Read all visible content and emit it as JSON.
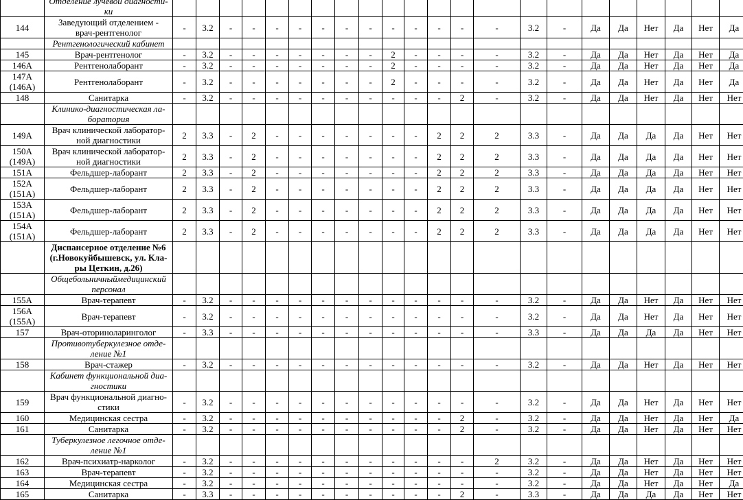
{
  "table": {
    "rows": [
      {
        "type": "section",
        "num": "",
        "name": "Отделение лучевой диагности-\nки"
      },
      {
        "type": "data",
        "num": "144",
        "name": "Заведующий отделением -\nврач-рентгенолог",
        "vals": [
          "-",
          "3.2",
          "-",
          "-",
          "-",
          "-",
          "-",
          "-",
          "-",
          "-",
          "-",
          "-",
          "-",
          "-",
          "3.2",
          "-"
        ],
        "flags": [
          "Да",
          "Да",
          "Нет",
          "Да",
          "Нет",
          "Да"
        ]
      },
      {
        "type": "section",
        "num": "",
        "name": "Рентгенологический кабинет"
      },
      {
        "type": "data",
        "num": "145",
        "name": "Врач-рентгенолог",
        "vals": [
          "-",
          "3.2",
          "-",
          "-",
          "-",
          "-",
          "-",
          "-",
          "-",
          "2",
          "-",
          "-",
          "-",
          "-",
          "3.2",
          "-"
        ],
        "flags": [
          "Да",
          "Да",
          "Нет",
          "Да",
          "Нет",
          "Да"
        ]
      },
      {
        "type": "data",
        "num": "146А",
        "name": "Рентгенолаборант",
        "vals": [
          "-",
          "3.2",
          "-",
          "-",
          "-",
          "-",
          "-",
          "-",
          "-",
          "2",
          "-",
          "-",
          "-",
          "-",
          "3.2",
          "-"
        ],
        "flags": [
          "Да",
          "Да",
          "Нет",
          "Да",
          "Нет",
          "Да"
        ]
      },
      {
        "type": "data",
        "num": "147А\n(146А)",
        "name": "Рентгенолаборант",
        "vals": [
          "-",
          "3.2",
          "-",
          "-",
          "-",
          "-",
          "-",
          "-",
          "-",
          "2",
          "-",
          "-",
          "-",
          "-",
          "3.2",
          "-"
        ],
        "flags": [
          "Да",
          "Да",
          "Нет",
          "Да",
          "Нет",
          "Да"
        ]
      },
      {
        "type": "data",
        "num": "148",
        "name": "Санитарка",
        "vals": [
          "-",
          "3.2",
          "-",
          "-",
          "-",
          "-",
          "-",
          "-",
          "-",
          "-",
          "-",
          "-",
          "2",
          "-",
          "3.2",
          "-"
        ],
        "flags": [
          "Да",
          "Да",
          "Нет",
          "Да",
          "Нет",
          "Нет"
        ]
      },
      {
        "type": "section",
        "num": "",
        "name": "Клинико-диагностическая ла-\nборатория"
      },
      {
        "type": "data",
        "num": "149А",
        "name": "Врач клинической лаборатор-\nной диагностики",
        "vals": [
          "2",
          "3.3",
          "-",
          "2",
          "-",
          "-",
          "-",
          "-",
          "-",
          "-",
          "-",
          "2",
          "2",
          "2",
          "3.3",
          "-"
        ],
        "flags": [
          "Да",
          "Да",
          "Да",
          "Да",
          "Нет",
          "Нет"
        ]
      },
      {
        "type": "data",
        "num": "150А\n(149А)",
        "name": "Врач клинической лаборатор-\nной диагностики",
        "vals": [
          "2",
          "3.3",
          "-",
          "2",
          "-",
          "-",
          "-",
          "-",
          "-",
          "-",
          "-",
          "2",
          "2",
          "2",
          "3.3",
          "-"
        ],
        "flags": [
          "Да",
          "Да",
          "Да",
          "Да",
          "Нет",
          "Нет"
        ]
      },
      {
        "type": "data",
        "num": "151А",
        "name": "Фельдшер-лаборант",
        "vals": [
          "2",
          "3.3",
          "-",
          "2",
          "-",
          "-",
          "-",
          "-",
          "-",
          "-",
          "-",
          "2",
          "2",
          "2",
          "3.3",
          "-"
        ],
        "flags": [
          "Да",
          "Да",
          "Да",
          "Да",
          "Нет",
          "Нет"
        ]
      },
      {
        "type": "data",
        "num": "152А\n(151А)",
        "name": "Фельдшер-лаборант",
        "vals": [
          "2",
          "3.3",
          "-",
          "2",
          "-",
          "-",
          "-",
          "-",
          "-",
          "-",
          "-",
          "2",
          "2",
          "2",
          "3.3",
          "-"
        ],
        "flags": [
          "Да",
          "Да",
          "Да",
          "Да",
          "Нет",
          "Нет"
        ]
      },
      {
        "type": "data",
        "num": "153А\n(151А)",
        "name": "Фельдшер-лаборант",
        "vals": [
          "2",
          "3.3",
          "-",
          "2",
          "-",
          "-",
          "-",
          "-",
          "-",
          "-",
          "-",
          "2",
          "2",
          "2",
          "3.3",
          "-"
        ],
        "flags": [
          "Да",
          "Да",
          "Да",
          "Да",
          "Нет",
          "Нет"
        ]
      },
      {
        "type": "data",
        "num": "154А\n(151А)",
        "name": "Фельдшер-лаборант",
        "vals": [
          "2",
          "3.3",
          "-",
          "2",
          "-",
          "-",
          "-",
          "-",
          "-",
          "-",
          "-",
          "2",
          "2",
          "2",
          "3.3",
          "-"
        ],
        "flags": [
          "Да",
          "Да",
          "Да",
          "Да",
          "Нет",
          "Нет"
        ]
      },
      {
        "type": "bold",
        "num": "",
        "name": "Диспансерное отделение №6\n(г.Новокуйбышевск, ул. Кла-\nры Цеткин, д.26)"
      },
      {
        "type": "section",
        "num": "",
        "name": "Общебольничныймедицинский\nперсонал"
      },
      {
        "type": "data",
        "num": "155А",
        "name": "Врач-терапевт",
        "vals": [
          "-",
          "3.2",
          "-",
          "-",
          "-",
          "-",
          "-",
          "-",
          "-",
          "-",
          "-",
          "-",
          "-",
          "-",
          "3.2",
          "-"
        ],
        "flags": [
          "Да",
          "Да",
          "Нет",
          "Да",
          "Нет",
          "Нет"
        ]
      },
      {
        "type": "data",
        "num": "156А\n(155А)",
        "name": "Врач-терапевт",
        "vals": [
          "-",
          "3.2",
          "-",
          "-",
          "-",
          "-",
          "-",
          "-",
          "-",
          "-",
          "-",
          "-",
          "-",
          "-",
          "3.2",
          "-"
        ],
        "flags": [
          "Да",
          "Да",
          "Нет",
          "Да",
          "Нет",
          "Нет"
        ]
      },
      {
        "type": "data",
        "num": "157",
        "name": "Врач-оториноларинголог",
        "vals": [
          "-",
          "3.3",
          "-",
          "-",
          "-",
          "-",
          "-",
          "-",
          "-",
          "-",
          "-",
          "-",
          "-",
          "-",
          "3.3",
          "-"
        ],
        "flags": [
          "Да",
          "Да",
          "Да",
          "Да",
          "Нет",
          "Нет"
        ]
      },
      {
        "type": "section",
        "num": "",
        "name": "Противотуберкулезное отде-\nление №1"
      },
      {
        "type": "data",
        "num": "158",
        "name": "Врач-стажер",
        "vals": [
          "-",
          "3.2",
          "-",
          "-",
          "-",
          "-",
          "-",
          "-",
          "-",
          "-",
          "-",
          "-",
          "-",
          "-",
          "3.2",
          "-"
        ],
        "flags": [
          "Да",
          "Да",
          "Нет",
          "Да",
          "Нет",
          "Нет"
        ]
      },
      {
        "type": "section",
        "num": "",
        "name": "Кабинет функциональной диа-\nгностики"
      },
      {
        "type": "data",
        "num": "159",
        "name": "Врач функциональной диагно-\nстики",
        "vals": [
          "-",
          "3.2",
          "-",
          "-",
          "-",
          "-",
          "-",
          "-",
          "-",
          "-",
          "-",
          "-",
          "-",
          "-",
          "3.2",
          "-"
        ],
        "flags": [
          "Да",
          "Да",
          "Нет",
          "Да",
          "Нет",
          "Нет"
        ]
      },
      {
        "type": "data",
        "num": "160",
        "name": "Медицинская сестра",
        "vals": [
          "-",
          "3.2",
          "-",
          "-",
          "-",
          "-",
          "-",
          "-",
          "-",
          "-",
          "-",
          "-",
          "2",
          "-",
          "3.2",
          "-"
        ],
        "flags": [
          "Да",
          "Да",
          "Нет",
          "Да",
          "Нет",
          "Да"
        ]
      },
      {
        "type": "data",
        "num": "161",
        "name": "Санитарка",
        "vals": [
          "-",
          "3.2",
          "-",
          "-",
          "-",
          "-",
          "-",
          "-",
          "-",
          "-",
          "-",
          "-",
          "2",
          "-",
          "3.2",
          "-"
        ],
        "flags": [
          "Да",
          "Да",
          "Нет",
          "Да",
          "Нет",
          "Нет"
        ]
      },
      {
        "type": "section",
        "num": "",
        "name": "Туберкулезное легочное отде-\nление №1"
      },
      {
        "type": "data",
        "num": "162",
        "name": "Врач-психиатр-нарколог",
        "vals": [
          "-",
          "3.2",
          "-",
          "-",
          "-",
          "-",
          "-",
          "-",
          "-",
          "-",
          "-",
          "-",
          "-",
          "2",
          "3.2",
          "-"
        ],
        "flags": [
          "Да",
          "Да",
          "Нет",
          "Да",
          "Нет",
          "Нет"
        ]
      },
      {
        "type": "data",
        "num": "163",
        "name": "Врач-терапевт",
        "vals": [
          "-",
          "3.2",
          "-",
          "-",
          "-",
          "-",
          "-",
          "-",
          "-",
          "-",
          "-",
          "-",
          "-",
          "-",
          "3.2",
          "-"
        ],
        "flags": [
          "Да",
          "Да",
          "Нет",
          "Да",
          "Нет",
          "Нет"
        ]
      },
      {
        "type": "data",
        "num": "164",
        "name": "Медицинская сестра",
        "vals": [
          "-",
          "3.2",
          "-",
          "-",
          "-",
          "-",
          "-",
          "-",
          "-",
          "-",
          "-",
          "-",
          "-",
          "-",
          "3.2",
          "-"
        ],
        "flags": [
          "Да",
          "Да",
          "Нет",
          "Да",
          "Нет",
          "Да"
        ]
      },
      {
        "type": "data",
        "num": "165",
        "name": "Санитарка",
        "vals": [
          "-",
          "3.3",
          "-",
          "-",
          "-",
          "-",
          "-",
          "-",
          "-",
          "-",
          "-",
          "-",
          "2",
          "-",
          "3.3",
          "-"
        ],
        "flags": [
          "Да",
          "Да",
          "Да",
          "Да",
          "Нет",
          "Нет"
        ]
      }
    ]
  }
}
